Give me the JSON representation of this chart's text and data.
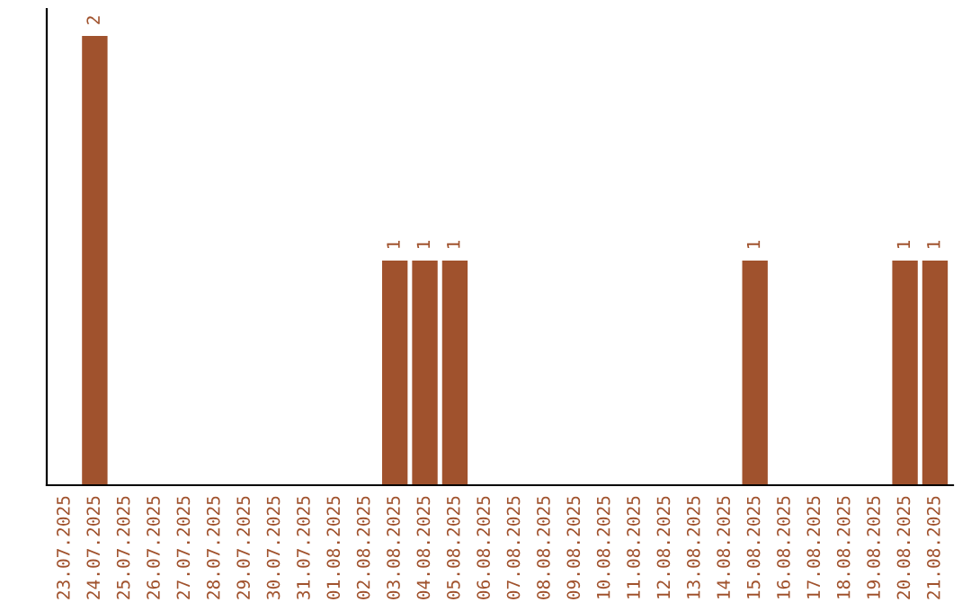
{
  "chart_data": {
    "type": "bar",
    "categories": [
      "23.07.2025",
      "24.07.2025",
      "25.07.2025",
      "26.07.2025",
      "27.07.2025",
      "28.07.2025",
      "29.07.2025",
      "30.07.2025",
      "31.07.2025",
      "01.08.2025",
      "02.08.2025",
      "03.08.2025",
      "04.08.2025",
      "05.08.2025",
      "06.08.2025",
      "07.08.2025",
      "08.08.2025",
      "09.08.2025",
      "10.08.2025",
      "11.08.2025",
      "12.08.2025",
      "13.08.2025",
      "14.08.2025",
      "15.08.2025",
      "16.08.2025",
      "17.08.2025",
      "18.08.2025",
      "19.08.2025",
      "20.08.2025",
      "21.08.2025"
    ],
    "values": [
      0,
      2,
      0,
      0,
      0,
      0,
      0,
      0,
      0,
      0,
      0,
      1,
      1,
      1,
      0,
      0,
      0,
      0,
      0,
      0,
      0,
      0,
      0,
      1,
      0,
      0,
      0,
      0,
      1,
      1
    ],
    "color": "#a0522d",
    "value_labels": [
      null,
      "2",
      null,
      null,
      null,
      null,
      null,
      null,
      null,
      null,
      null,
      "1",
      "1",
      "1",
      null,
      null,
      null,
      null,
      null,
      null,
      null,
      null,
      null,
      "1",
      null,
      null,
      null,
      null,
      "1",
      "1"
    ],
    "grid": false,
    "legend": false,
    "tick_labels": "x"
  }
}
